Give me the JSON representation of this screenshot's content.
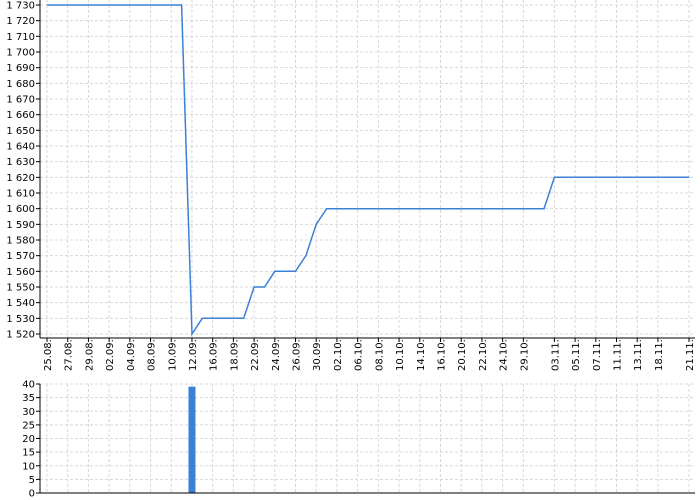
{
  "chart_data": [
    {
      "type": "line",
      "title": "",
      "xlabel": "",
      "ylabel": "",
      "x_tick_labels": [
        {
          "i": 0,
          "label": "25.08."
        },
        {
          "i": 2,
          "label": "27.08."
        },
        {
          "i": 4,
          "label": "29.08."
        },
        {
          "i": 6,
          "label": "02.09."
        },
        {
          "i": 8,
          "label": "04.09."
        },
        {
          "i": 10,
          "label": "08.09."
        },
        {
          "i": 12,
          "label": "10.09."
        },
        {
          "i": 14,
          "label": "12.09."
        },
        {
          "i": 16,
          "label": "16.09."
        },
        {
          "i": 18,
          "label": "18.09."
        },
        {
          "i": 20,
          "label": "22.09."
        },
        {
          "i": 22,
          "label": "24.09."
        },
        {
          "i": 24,
          "label": "26.09."
        },
        {
          "i": 26,
          "label": "30.09."
        },
        {
          "i": 28,
          "label": "02.10."
        },
        {
          "i": 30,
          "label": "06.10."
        },
        {
          "i": 32,
          "label": "08.10."
        },
        {
          "i": 34,
          "label": "10.10."
        },
        {
          "i": 36,
          "label": "14.10."
        },
        {
          "i": 38,
          "label": "16.10."
        },
        {
          "i": 40,
          "label": "20.10."
        },
        {
          "i": 42,
          "label": "22.10."
        },
        {
          "i": 44,
          "label": "24.10."
        },
        {
          "i": 46,
          "label": "29.10."
        },
        {
          "i": 49,
          "label": "03.11."
        },
        {
          "i": 51,
          "label": "05.11."
        },
        {
          "i": 53,
          "label": "07.11."
        },
        {
          "i": 55,
          "label": "11.11."
        },
        {
          "i": 57,
          "label": "13.11."
        },
        {
          "i": 59,
          "label": "18.11."
        },
        {
          "i": 62,
          "label": "21.11."
        }
      ],
      "x_range": [
        0,
        62
      ],
      "ylim": [
        1520,
        1730
      ],
      "y_ticks": [
        "1 520",
        "1 530",
        "1 540",
        "1 550",
        "1 560",
        "1 570",
        "1 580",
        "1 590",
        "1 600",
        "1 610",
        "1 620",
        "1 630",
        "1 640",
        "1 650",
        "1 660",
        "1 670",
        "1 680",
        "1 690",
        "1 700",
        "1 710",
        "1 720",
        "1 730"
      ],
      "grid": true,
      "color": "#3a80d6",
      "series": [
        {
          "points": [
            [
              0,
              1730
            ],
            [
              13,
              1730
            ],
            [
              14,
              1520
            ],
            [
              15,
              1530
            ],
            [
              19,
              1530
            ],
            [
              20,
              1550
            ],
            [
              21,
              1550
            ],
            [
              22,
              1560
            ],
            [
              24,
              1560
            ],
            [
              25,
              1570
            ],
            [
              26,
              1590
            ],
            [
              27,
              1600
            ],
            [
              48,
              1600
            ],
            [
              49,
              1620
            ],
            [
              62,
              1620
            ]
          ]
        }
      ]
    },
    {
      "type": "bar",
      "xlabel": "",
      "ylabel": "",
      "ylim": [
        0,
        40
      ],
      "y_ticks": [
        "0",
        "5",
        "10",
        "15",
        "20",
        "25",
        "30",
        "35",
        "40"
      ],
      "grid": true,
      "color": "#3a80d6",
      "bars": [
        {
          "i": 14,
          "value": 39
        }
      ]
    }
  ]
}
